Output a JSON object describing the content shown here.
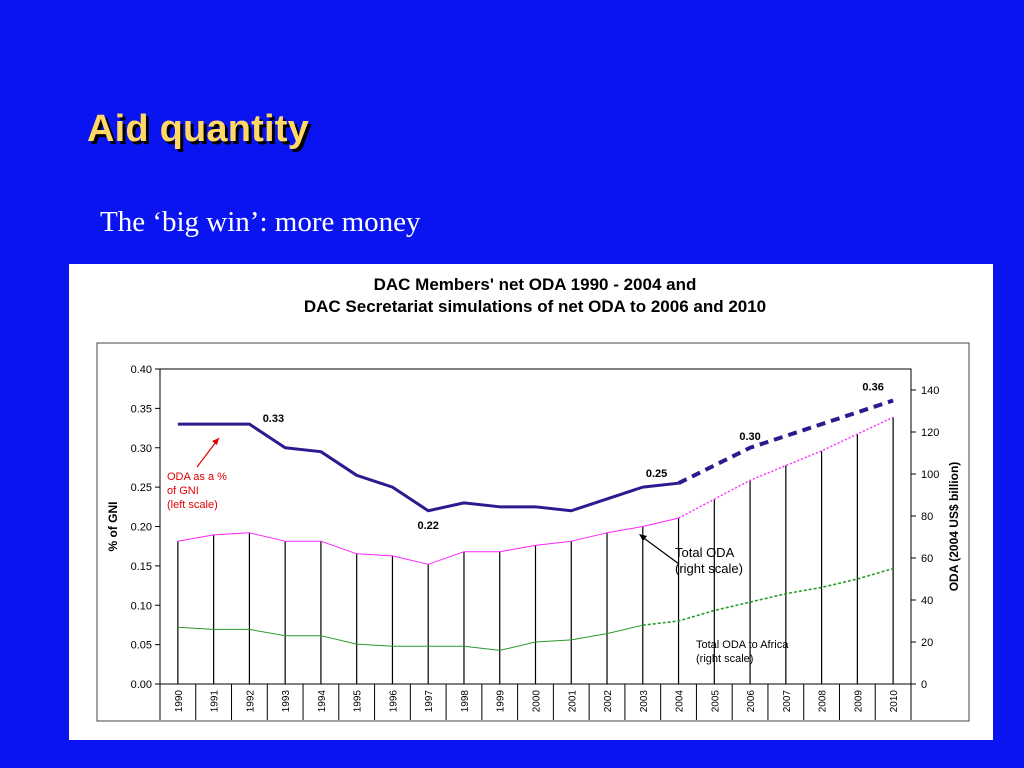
{
  "slide": {
    "title": "Aid quantity",
    "subtitle": "The ‘big win’: more money"
  },
  "colors": {
    "background": "#0a14f0",
    "title": "#ffd866",
    "gni_line": "#2d1a8f",
    "total_oda_line": "#ff22ff",
    "africa_line": "#2a9a2a",
    "annotation_red": "#e00000"
  },
  "chart_data": {
    "type": "line",
    "title": "DAC Members' net ODA 1990 - 2004 and",
    "subtitle": "DAC Secretariat simulations of net ODA to 2006 and 2010",
    "x": [
      "1990",
      "1991",
      "1992",
      "1993",
      "1994",
      "1995",
      "1996",
      "1997",
      "1998",
      "1999",
      "2000",
      "2001",
      "2002",
      "2003",
      "2004",
      "2005",
      "2006",
      "2007",
      "2008",
      "2009",
      "2010"
    ],
    "ylabel_left": "% of GNI",
    "ylabel_right": "ODA (2004 US$ billion)",
    "ylim_left": [
      0,
      0.4
    ],
    "ylim_right": [
      0,
      150
    ],
    "yticks_left": [
      "0.00",
      "0.05",
      "0.10",
      "0.15",
      "0.20",
      "0.25",
      "0.30",
      "0.35",
      "0.40"
    ],
    "yticks_right": [
      "0",
      "20",
      "40",
      "60",
      "80",
      "100",
      "120",
      "140"
    ],
    "vertical_bars": true,
    "series": [
      {
        "name": "ODA as a % of GNI",
        "axis": "left",
        "actual_x": [
          "1990",
          "1991",
          "1992",
          "1993",
          "1994",
          "1995",
          "1996",
          "1997",
          "1998",
          "1999",
          "2000",
          "2001",
          "2002",
          "2003",
          "2004"
        ],
        "actual_values": [
          0.33,
          0.33,
          0.33,
          0.3,
          0.295,
          0.265,
          0.25,
          0.22,
          0.23,
          0.225,
          0.225,
          0.22,
          0.235,
          0.25,
          0.255
        ],
        "projected_x": [
          "2004",
          "2006",
          "2010"
        ],
        "projected_values": [
          0.255,
          0.3,
          0.36
        ]
      },
      {
        "name": "Total ODA",
        "axis": "right",
        "actual_x": [
          "1990",
          "1991",
          "1992",
          "1993",
          "1994",
          "1995",
          "1996",
          "1997",
          "1998",
          "1999",
          "2000",
          "2001",
          "2002",
          "2003",
          "2004"
        ],
        "actual_values": [
          68,
          71,
          72,
          68,
          68,
          62,
          61,
          57,
          63,
          63,
          66,
          68,
          72,
          75,
          79
        ],
        "projected_x": [
          "2004",
          "2005",
          "2006",
          "2007",
          "2008",
          "2009",
          "2010"
        ],
        "projected_values": [
          79,
          88,
          97,
          104,
          111,
          119,
          127
        ]
      },
      {
        "name": "Total ODA to Africa",
        "axis": "right",
        "actual_x": [
          "1990",
          "1991",
          "1992",
          "1993",
          "1994",
          "1995",
          "1996",
          "1997",
          "1998",
          "1999",
          "2000",
          "2001",
          "2002",
          "2003"
        ],
        "actual_values": [
          27,
          26,
          26,
          23,
          23,
          19,
          18,
          18,
          18,
          16,
          20,
          21,
          24,
          28
        ],
        "projected_x": [
          "2003",
          "2004",
          "2005",
          "2006",
          "2007",
          "2008",
          "2009",
          "2010"
        ],
        "projected_values": [
          28,
          30,
          35,
          39,
          43,
          46,
          50,
          55
        ]
      }
    ],
    "annotations": [
      {
        "id": "gni",
        "lines": [
          "ODA as a %",
          "of GNI",
          "(left scale)"
        ]
      },
      {
        "id": "total",
        "lines": [
          "Total ODA",
          "(right scale)"
        ]
      },
      {
        "id": "africa",
        "lines": [
          "Total ODA to Africa",
          "(right scale)"
        ]
      }
    ],
    "value_labels": [
      {
        "x": "1992",
        "value": 0.33,
        "text": "0.33"
      },
      {
        "x": "1997",
        "value": 0.22,
        "text": "0.22"
      },
      {
        "x": "2004",
        "value": 0.25,
        "text": "0.25"
      },
      {
        "x": "2006",
        "value": 0.3,
        "text": "0.30"
      },
      {
        "x": "2010",
        "value": 0.36,
        "text": "0.36"
      }
    ]
  }
}
